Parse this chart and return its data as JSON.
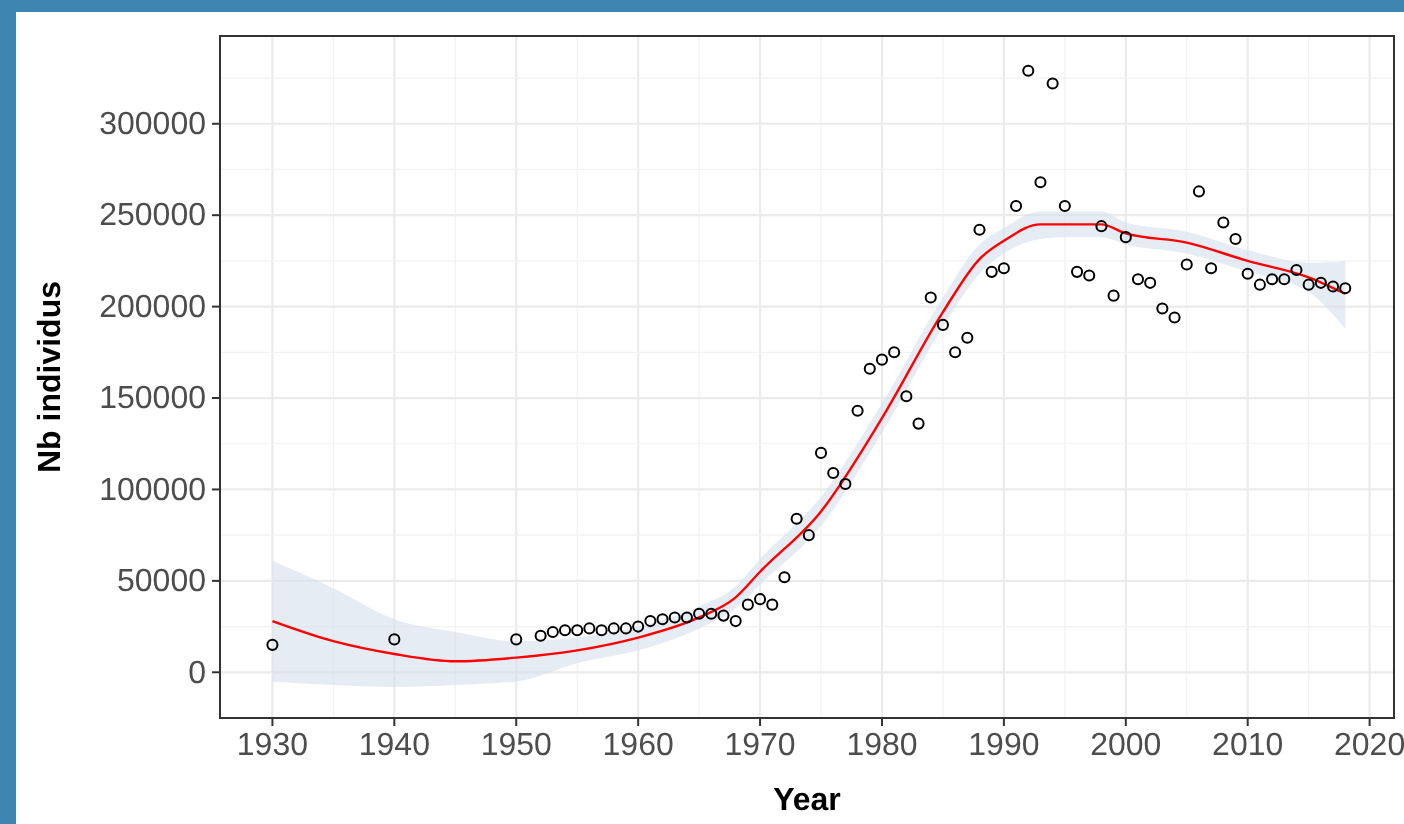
{
  "chart_data": {
    "type": "scatter",
    "xlabel": "Year",
    "ylabel": "Nb individus",
    "xlim": [
      1925.7,
      2022
    ],
    "xticks": [
      1930,
      1940,
      1950,
      1960,
      1970,
      1980,
      1990,
      2000,
      2010,
      2020
    ],
    "ylim": [
      -25000,
      348000
    ],
    "yticks": [
      0,
      50000,
      100000,
      150000,
      200000,
      250000,
      300000
    ],
    "grid": true,
    "series": [
      {
        "color": "#000000",
        "marker": "circle",
        "x": [
          1930,
          1940,
          1950,
          1952,
          1953,
          1954,
          1955,
          1956,
          1957,
          1958,
          1959,
          1960,
          1961,
          1962,
          1963,
          1964,
          1965,
          1966,
          1967,
          1968,
          1969,
          1970,
          1971,
          1972,
          1973,
          1974,
          1975,
          1976,
          1977,
          1978,
          1979,
          1980,
          1981,
          1982,
          1983,
          1984,
          1985,
          1986,
          1987,
          1988,
          1989,
          1990,
          1991,
          1992,
          1993,
          1994,
          1995,
          1996,
          1997,
          1998,
          1999,
          2000,
          2001,
          2002,
          2003,
          2004,
          2005,
          2006,
          2007,
          2008,
          2009,
          2010,
          2011,
          2012,
          2013,
          2014,
          2015,
          2016,
          2017,
          2018
        ],
        "values": [
          15000,
          18000,
          18000,
          20000,
          22000,
          23000,
          23000,
          24000,
          23000,
          24000,
          24000,
          25000,
          28000,
          29000,
          30000,
          30000,
          32000,
          32000,
          31000,
          28000,
          37000,
          40000,
          37000,
          52000,
          84000,
          75000,
          120000,
          109000,
          103000,
          143000,
          166000,
          171000,
          175000,
          151000,
          136000,
          205000,
          190000,
          175000,
          183000,
          242000,
          219000,
          221000,
          255000,
          329000,
          268000,
          322000,
          255000,
          219000,
          217000,
          244000,
          206000,
          238000,
          215000,
          213000,
          199000,
          194000,
          223000,
          263000,
          221000,
          246000,
          237000,
          218000,
          212000,
          215000,
          215000,
          220000,
          212000,
          213000,
          211000,
          210000
        ]
      },
      {
        "type": "line",
        "color": "#ff0000",
        "marker": "none",
        "x": [
          1930,
          1935,
          1940,
          1945,
          1950,
          1955,
          1960,
          1965,
          1968,
          1970,
          1975,
          1980,
          1985,
          1988,
          1990,
          1993,
          1995,
          1998,
          2000,
          2005,
          2010,
          2015,
          2018
        ],
        "values": [
          28000,
          17000,
          10000,
          6000,
          8000,
          12000,
          19000,
          30000,
          41000,
          55000,
          88000,
          139000,
          197000,
          226000,
          236000,
          245000,
          245000,
          245000,
          240000,
          235000,
          225000,
          216000,
          207000
        ],
        "lower": [
          -5000,
          -7000,
          -8000,
          -7000,
          -5000,
          5000,
          12000,
          24000,
          35000,
          48000,
          80000,
          131000,
          189000,
          218000,
          229000,
          237000,
          238000,
          238000,
          234000,
          229000,
          219000,
          208000,
          188000
        ],
        "upper": [
          61000,
          46000,
          29000,
          22000,
          17000,
          19000,
          25000,
          36000,
          47000,
          62000,
          96000,
          147000,
          205000,
          234000,
          243000,
          252000,
          252000,
          252000,
          246000,
          241000,
          231000,
          224000,
          225000
        ]
      }
    ]
  }
}
